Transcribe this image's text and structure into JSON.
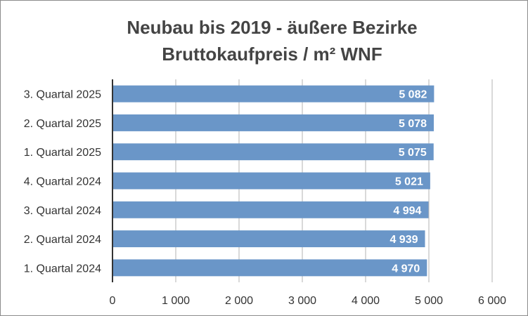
{
  "chart_data": {
    "type": "bar",
    "orientation": "horizontal",
    "title": [
      "Neubau bis 2019 - äußere Bezirke",
      "Bruttokaufpreis / m² WNF"
    ],
    "categories": [
      "3. Quartal 2025",
      "2. Quartal 2025",
      "1. Quartal 2025",
      "4. Quartal 2024",
      "3. Quartal 2024",
      "2. Quartal 2024",
      "1. Quartal 2024"
    ],
    "values": [
      5082,
      5078,
      5075,
      5021,
      4994,
      4939,
      4970
    ],
    "value_labels": [
      "5 082",
      "5 078",
      "5 075",
      "5 021",
      "4 994",
      "4 939",
      "4 970"
    ],
    "xticks": [
      0,
      1000,
      2000,
      3000,
      4000,
      5000,
      6000
    ],
    "xtick_labels": [
      "0",
      "1 000",
      "2 000",
      "3 000",
      "4 000",
      "5 000",
      "6 000"
    ],
    "xlim": [
      0,
      6000
    ],
    "grid": true,
    "legend": "none",
    "bar_color": "#6a96c8"
  }
}
